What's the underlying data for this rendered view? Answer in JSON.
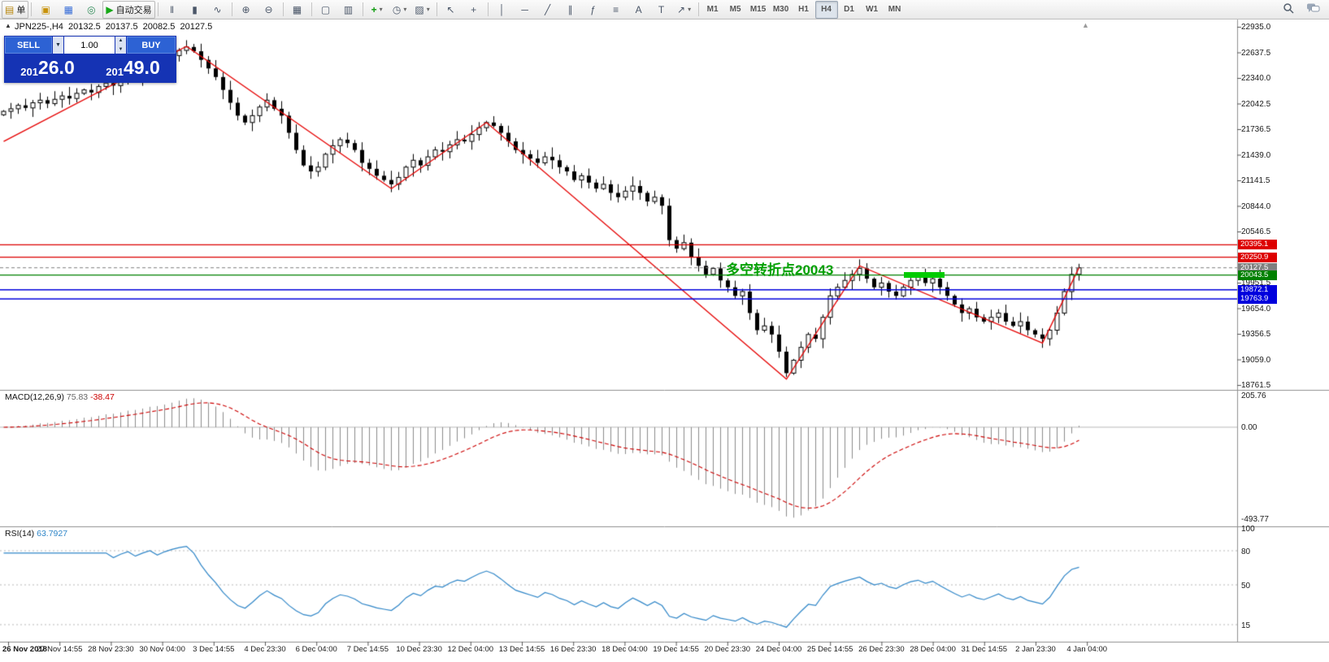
{
  "toolbar": {
    "groups": [
      {
        "items": [
          {
            "name": "new-order-button",
            "glyph": "▤",
            "glyph_color": "#b8860b",
            "label": "单",
            "raised": true
          }
        ]
      },
      {
        "items": [
          {
            "name": "new-chart-button",
            "glyph": "▣",
            "glyph_color": "#c8920a"
          },
          {
            "name": "profiles-button",
            "glyph": "▦",
            "glyph_color": "#3a6fd8"
          },
          {
            "name": "refresh-button",
            "glyph": "◎",
            "glyph_color": "#2e8b57"
          },
          {
            "name": "autotrading-button",
            "glyph": "▶",
            "glyph_color": "#16a816",
            "label": "自动交易",
            "raised": true
          }
        ]
      },
      {
        "items": [
          {
            "name": "bar-chart-button",
            "glyph": "ǁ"
          },
          {
            "name": "candlestick-chart-button",
            "glyph": "▮"
          },
          {
            "name": "line-chart-button",
            "glyph": "∿"
          }
        ]
      },
      {
        "items": [
          {
            "name": "zoom-in-button",
            "glyph": "⊕"
          },
          {
            "name": "zoom-out-button",
            "glyph": "⊖"
          }
        ]
      },
      {
        "items": [
          {
            "name": "tile-windows-button",
            "glyph": "▦"
          }
        ]
      },
      {
        "items": [
          {
            "name": "arrange-windows-button",
            "glyph": "▢"
          },
          {
            "name": "chart-shift-button",
            "glyph": "▥"
          }
        ]
      },
      {
        "items": [
          {
            "name": "add-indicator-button",
            "glyph": "+",
            "glyph_color": "#0a9a0a",
            "caret": true
          },
          {
            "name": "periods-menu-button",
            "glyph": "◷",
            "caret": true
          },
          {
            "name": "templates-menu-button",
            "glyph": "▨",
            "caret": true
          }
        ]
      },
      {
        "items": [
          {
            "name": "cursor-button",
            "glyph": "↖"
          },
          {
            "name": "crosshair-button",
            "glyph": "+"
          }
        ]
      },
      {
        "items": [
          {
            "name": "vertical-line-button",
            "glyph": "│"
          },
          {
            "name": "horizontal-line-button",
            "glyph": "─"
          },
          {
            "name": "trendline-button",
            "glyph": "╱"
          },
          {
            "name": "channel-button",
            "glyph": "∥"
          },
          {
            "name": "fibonacci-button",
            "glyph": "ƒ"
          },
          {
            "name": "shapes-button",
            "glyph": "≡"
          },
          {
            "name": "text-button",
            "glyph": "A"
          },
          {
            "name": "label-button",
            "glyph": "T"
          },
          {
            "name": "arrows-button",
            "glyph": "↗",
            "caret": true
          }
        ]
      },
      {
        "items": [
          {
            "name": "timeframe-m1",
            "tf": "M1"
          },
          {
            "name": "timeframe-m5",
            "tf": "M5"
          },
          {
            "name": "timeframe-m15",
            "tf": "M15"
          },
          {
            "name": "timeframe-m30",
            "tf": "M30"
          },
          {
            "name": "timeframe-h1",
            "tf": "H1"
          },
          {
            "name": "timeframe-h4",
            "tf": "H4",
            "active": true
          },
          {
            "name": "timeframe-d1",
            "tf": "D1"
          },
          {
            "name": "timeframe-w1",
            "tf": "W1"
          },
          {
            "name": "timeframe-mn",
            "tf": "MN"
          }
        ]
      }
    ]
  },
  "chart": {
    "title": {
      "symbol_period": "JPN225-,H4",
      "open": "20132.5",
      "high": "20137.5",
      "low": "20082.5",
      "close": "20127.5"
    },
    "trade_panel": {
      "sell_label": "SELL",
      "buy_label": "BUY",
      "volume": "1.00",
      "sell_price": "20126.0",
      "buy_price": "20149.0"
    },
    "annotation": {
      "text": "多空转折点20043",
      "color": "#00a000"
    },
    "highlight_color": "#00cc00",
    "levels": [
      {
        "label": "20395.1",
        "price": 20395.1,
        "color": "#dd0000",
        "style": "solid",
        "width": 1.4
      },
      {
        "label": "20250.9",
        "price": 20250.9,
        "color": "#dd0000",
        "style": "solid",
        "width": 1.4
      },
      {
        "label": "20127.5",
        "price": 20127.5,
        "color": "#808080",
        "style": "dash",
        "width": 1
      },
      {
        "label": "20043.5",
        "price": 20043.5,
        "color": "#008000",
        "style": "solid",
        "width": 1.2
      },
      {
        "label": "19872.1",
        "price": 19872.1,
        "color": "#0000dd",
        "style": "solid",
        "width": 1.5
      },
      {
        "label": "19763.9",
        "price": 19763.9,
        "color": "#0000dd",
        "style": "solid",
        "width": 1.5
      }
    ],
    "y_axis_labels": [
      "22935.0",
      "22637.5",
      "22340.0",
      "22042.5",
      "21736.5",
      "21439.0",
      "21141.5",
      "20844.0",
      "20546.5",
      "20249.0",
      "19951.5",
      "19654.0",
      "19356.5",
      "19059.0",
      "18761.5"
    ],
    "x_axis_labels": [
      "26 Nov 2018",
      "27 Nov 14:55",
      "28 Nov 23:30",
      "30 Nov 04:00",
      "3 Dec 14:55",
      "4 Dec 23:30",
      "6 Dec 04:00",
      "7 Dec 14:55",
      "10 Dec 23:30",
      "12 Dec 04:00",
      "13 Dec 14:55",
      "16 Dec 23:30",
      "18 Dec 04:00",
      "19 Dec 14:55",
      "20 Dec 23:30",
      "24 Dec 04:00",
      "25 Dec 14:55",
      "26 Dec 23:30",
      "28 Dec 04:00",
      "31 Dec 14:55",
      "2 Jan 23:30",
      "4 Jan 04:00"
    ]
  },
  "macd": {
    "label": "MACD(12,26,9)",
    "main_value": "75.83",
    "signal_value": "-38.47",
    "axis": [
      "205.76",
      "0.00",
      "-493.77"
    ]
  },
  "rsi": {
    "label": "RSI(14)",
    "value": "63.7927",
    "axis": [
      "100",
      "80",
      "50",
      "15"
    ],
    "axis_values": [
      100,
      80,
      50,
      15
    ],
    "levels": [
      80,
      50,
      15
    ]
  },
  "chart_data": {
    "type": "candlestick",
    "symbol": "JPN225-",
    "period": "H4",
    "closes": [
      21950,
      21980,
      22020,
      21990,
      22050,
      22080,
      22040,
      22090,
      22130,
      22100,
      22160,
      22200,
      22170,
      22240,
      22280,
      22250,
      22320,
      22380,
      22350,
      22420,
      22480,
      22450,
      22530,
      22600,
      22660,
      22700,
      22650,
      22550,
      22450,
      22350,
      22200,
      22050,
      21900,
      21820,
      21900,
      22000,
      22080,
      21980,
      21900,
      21700,
      21500,
      21320,
      21250,
      21300,
      21450,
      21550,
      21620,
      21580,
      21500,
      21350,
      21280,
      21200,
      21150,
      21100,
      21180,
      21300,
      21380,
      21320,
      21420,
      21500,
      21480,
      21560,
      21620,
      21600,
      21680,
      21760,
      21820,
      21780,
      21700,
      21600,
      21500,
      21450,
      21400,
      21350,
      21420,
      21380,
      21300,
      21250,
      21150,
      21200,
      21120,
      21050,
      21100,
      21000,
      20950,
      21020,
      21080,
      21000,
      20900,
      20950,
      20850,
      20450,
      20350,
      20420,
      20250,
      20150,
      20050,
      20120,
      19980,
      19900,
      19800,
      19850,
      19600,
      19400,
      19450,
      19350,
      19150,
      18900,
      19050,
      19200,
      19350,
      19300,
      19550,
      19800,
      19900,
      19980,
      20050,
      20120,
      20000,
      19900,
      19950,
      19850,
      19800,
      19900,
      19980,
      20020,
      19950,
      20000,
      19900,
      19800,
      19700,
      19600,
      19650,
      19550,
      19500,
      19550,
      19600,
      19500,
      19450,
      19500,
      19400,
      19350,
      19300,
      19400,
      19600,
      19850,
      20050,
      20127.5
    ],
    "zigzag": [
      [
        0,
        21600
      ],
      [
        25,
        22708
      ],
      [
        53,
        21050
      ],
      [
        66,
        21820
      ],
      [
        107,
        18830
      ],
      [
        117,
        20150
      ],
      [
        142,
        19250
      ],
      [
        147,
        20130
      ]
    ]
  }
}
